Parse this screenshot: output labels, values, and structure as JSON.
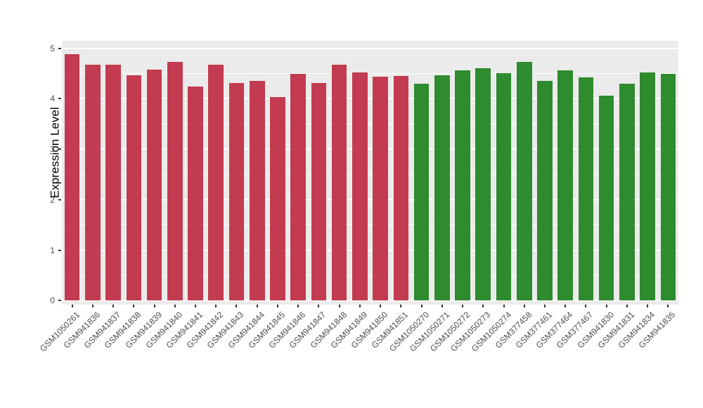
{
  "chart_data": {
    "type": "bar",
    "title": "",
    "xlabel": "",
    "ylabel": "Expression Level",
    "ylim": [
      0,
      5
    ],
    "yticks": [
      0,
      1,
      2,
      3,
      4,
      5
    ],
    "yminor": [
      0.5,
      1.5,
      2.5,
      3.5,
      4.5
    ],
    "grid": "on",
    "legend_position": "none",
    "panel_background": "#EBEBEB",
    "grid_color": "#FFFFFF",
    "axis_text_color": "#4D4D4D",
    "group_colors": [
      "#C23B50",
      "#2E8B2E"
    ],
    "categories": [
      "GSM1050261",
      "GSM941836",
      "GSM941837",
      "GSM941838",
      "GSM941839",
      "GSM941840",
      "GSM941841",
      "GSM941842",
      "GSM941843",
      "GSM941844",
      "GSM941845",
      "GSM941846",
      "GSM941847",
      "GSM941848",
      "GSM941849",
      "GSM941850",
      "GSM941851",
      "GSM1050270",
      "GSM1050271",
      "GSM1050272",
      "GSM1050273",
      "GSM1050274",
      "GSM377458",
      "GSM377461",
      "GSM377464",
      "GSM377467",
      "GSM941830",
      "GSM941831",
      "GSM941834",
      "GSM941835"
    ],
    "values": [
      4.88,
      4.67,
      4.67,
      4.47,
      4.58,
      4.73,
      4.25,
      4.67,
      4.31,
      4.35,
      4.03,
      4.49,
      4.32,
      4.67,
      4.52,
      4.44,
      4.45,
      4.3,
      4.46,
      4.57,
      4.6,
      4.51,
      4.73,
      4.36,
      4.57,
      4.42,
      4.06,
      4.3,
      4.52,
      4.5
    ],
    "bar_groups": [
      0,
      0,
      0,
      0,
      0,
      0,
      0,
      0,
      0,
      0,
      0,
      0,
      0,
      0,
      0,
      0,
      0,
      1,
      1,
      1,
      1,
      1,
      1,
      1,
      1,
      1,
      1,
      1,
      1,
      1
    ]
  }
}
